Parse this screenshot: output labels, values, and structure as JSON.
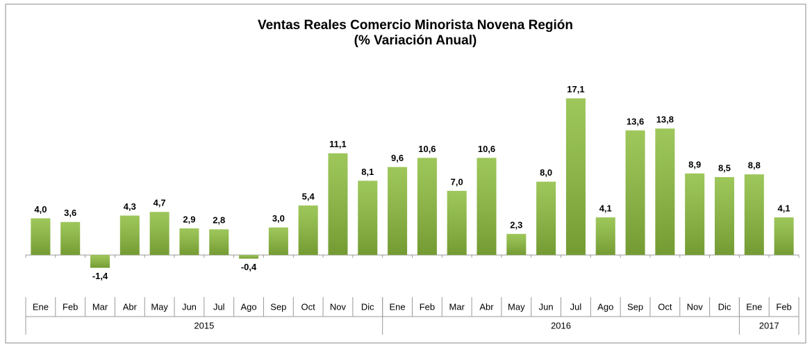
{
  "chart_data": {
    "type": "bar",
    "title": "Ventas Reales Comercio Minorista Novena Región",
    "subtitle": "(% Variación Anual)",
    "categories": [
      "Ene",
      "Feb",
      "Mar",
      "Abr",
      "May",
      "Jun",
      "Jul",
      "Ago",
      "Sep",
      "Oct",
      "Nov",
      "Dic",
      "Ene",
      "Feb",
      "Mar",
      "Abr",
      "May",
      "Jun",
      "Jul",
      "Ago",
      "Sep",
      "Oct",
      "Nov",
      "Dic",
      "Ene",
      "Feb"
    ],
    "groups": [
      {
        "name": "2015",
        "size": 12
      },
      {
        "name": "2016",
        "size": 12
      },
      {
        "name": "2017",
        "size": 2
      }
    ],
    "values": [
      4.0,
      3.6,
      -1.4,
      4.3,
      4.7,
      2.9,
      2.8,
      -0.4,
      3.0,
      5.4,
      11.1,
      8.1,
      9.6,
      10.6,
      7.0,
      10.6,
      2.3,
      8.0,
      17.1,
      4.1,
      13.6,
      13.8,
      8.9,
      8.5,
      8.8,
      4.1
    ],
    "value_labels": [
      "4,0",
      "3,6",
      "-1,4",
      "4,3",
      "4,7",
      "2,9",
      "2,8",
      "-0,4",
      "3,0",
      "5,4",
      "11,1",
      "8,1",
      "9,6",
      "10,6",
      "7,0",
      "10,6",
      "2,3",
      "8,0",
      "17,1",
      "4,1",
      "13,6",
      "13,8",
      "8,9",
      "8,5",
      "8,8",
      "4,1"
    ],
    "color": "#8dbd3e",
    "ylim": [
      -4,
      22
    ]
  }
}
